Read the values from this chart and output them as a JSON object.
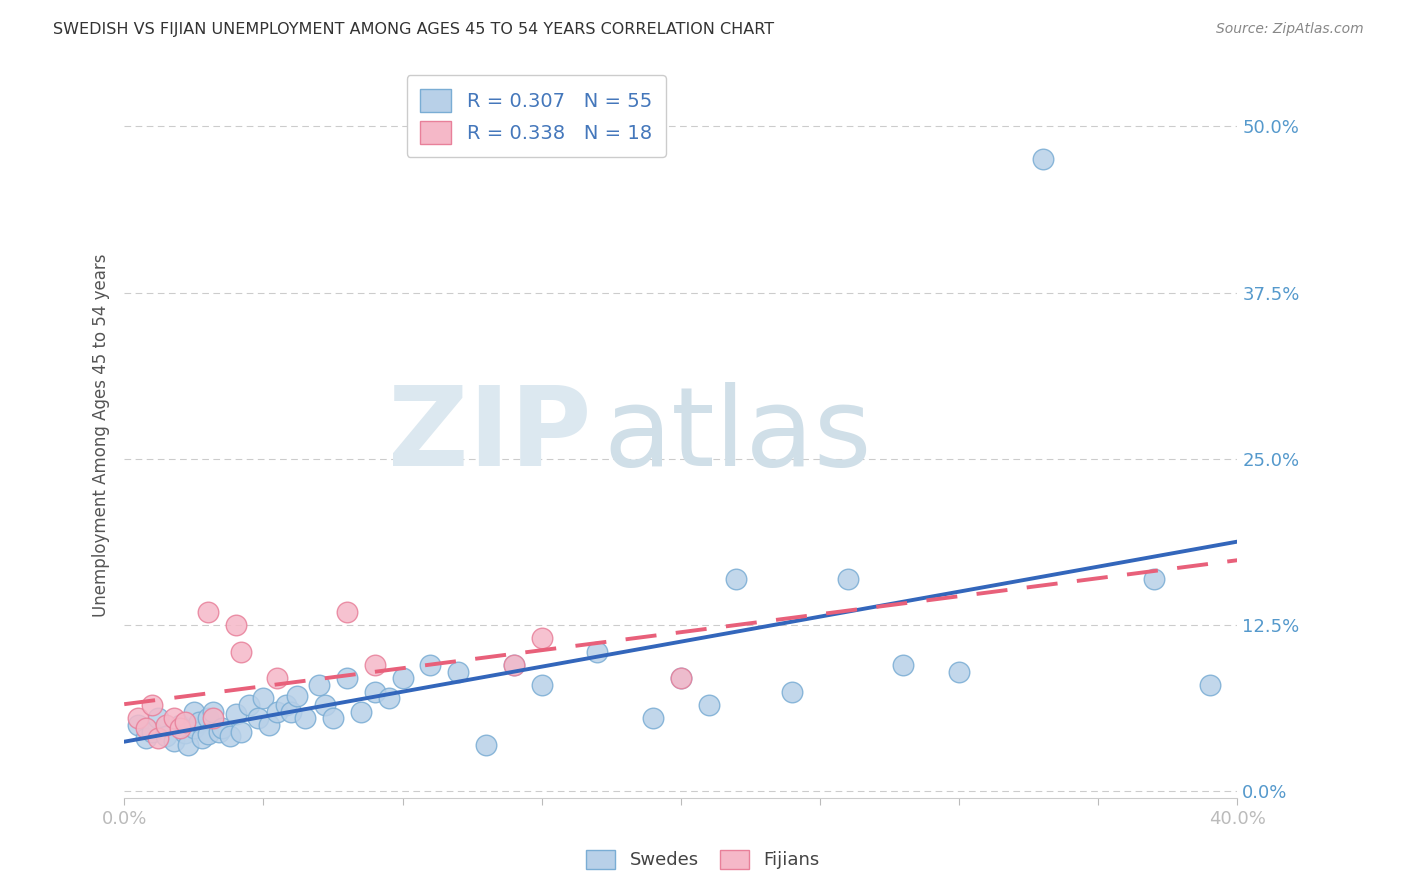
{
  "title": "SWEDISH VS FIJIAN UNEMPLOYMENT AMONG AGES 45 TO 54 YEARS CORRELATION CHART",
  "source": "Source: ZipAtlas.com",
  "ylabel": "Unemployment Among Ages 45 to 54 years",
  "xlim": [
    0.0,
    0.4
  ],
  "ylim": [
    -0.005,
    0.54
  ],
  "yticks": [
    0.0,
    0.125,
    0.25,
    0.375,
    0.5
  ],
  "ytick_labels": [
    "0.0%",
    "12.5%",
    "25.0%",
    "37.5%",
    "50.0%"
  ],
  "xticks": [
    0.0,
    0.05,
    0.1,
    0.15,
    0.2,
    0.25,
    0.3,
    0.35,
    0.4
  ],
  "xtick_labels": [
    "0.0%",
    "",
    "",
    "",
    "",
    "",
    "",
    "",
    "40.0%"
  ],
  "swedish_color": "#b8d0e8",
  "swedish_edge_color": "#7aadd4",
  "fijian_color": "#f5b8c8",
  "fijian_edge_color": "#e8809a",
  "swedish_line_color": "#3366bb",
  "fijian_line_color": "#e8607a",
  "legend_R_swedish": "0.307",
  "legend_N_swedish": "55",
  "legend_R_fijian": "0.338",
  "legend_N_fijian": "18",
  "swedish_x": [
    0.005,
    0.008,
    0.01,
    0.012,
    0.015,
    0.018,
    0.02,
    0.022,
    0.023,
    0.025,
    0.025,
    0.027,
    0.028,
    0.03,
    0.03,
    0.032,
    0.034,
    0.035,
    0.038,
    0.04,
    0.042,
    0.045,
    0.048,
    0.05,
    0.052,
    0.055,
    0.058,
    0.06,
    0.062,
    0.065,
    0.07,
    0.072,
    0.075,
    0.08,
    0.085,
    0.09,
    0.095,
    0.1,
    0.11,
    0.12,
    0.13,
    0.14,
    0.15,
    0.17,
    0.19,
    0.2,
    0.21,
    0.22,
    0.24,
    0.26,
    0.28,
    0.3,
    0.33,
    0.37,
    0.39
  ],
  "swedish_y": [
    0.05,
    0.04,
    0.045,
    0.055,
    0.042,
    0.038,
    0.05,
    0.044,
    0.035,
    0.048,
    0.06,
    0.052,
    0.04,
    0.055,
    0.043,
    0.06,
    0.045,
    0.048,
    0.042,
    0.058,
    0.045,
    0.065,
    0.055,
    0.07,
    0.05,
    0.06,
    0.065,
    0.06,
    0.072,
    0.055,
    0.08,
    0.065,
    0.055,
    0.085,
    0.06,
    0.075,
    0.07,
    0.085,
    0.095,
    0.09,
    0.035,
    0.095,
    0.08,
    0.105,
    0.055,
    0.085,
    0.065,
    0.16,
    0.075,
    0.16,
    0.095,
    0.09,
    0.475,
    0.16,
    0.08
  ],
  "fijian_x": [
    0.005,
    0.008,
    0.01,
    0.012,
    0.015,
    0.018,
    0.02,
    0.022,
    0.03,
    0.032,
    0.04,
    0.042,
    0.055,
    0.08,
    0.09,
    0.14,
    0.15,
    0.2
  ],
  "fijian_y": [
    0.055,
    0.048,
    0.065,
    0.04,
    0.05,
    0.055,
    0.048,
    0.052,
    0.135,
    0.055,
    0.125,
    0.105,
    0.085,
    0.135,
    0.095,
    0.095,
    0.115,
    0.085
  ]
}
